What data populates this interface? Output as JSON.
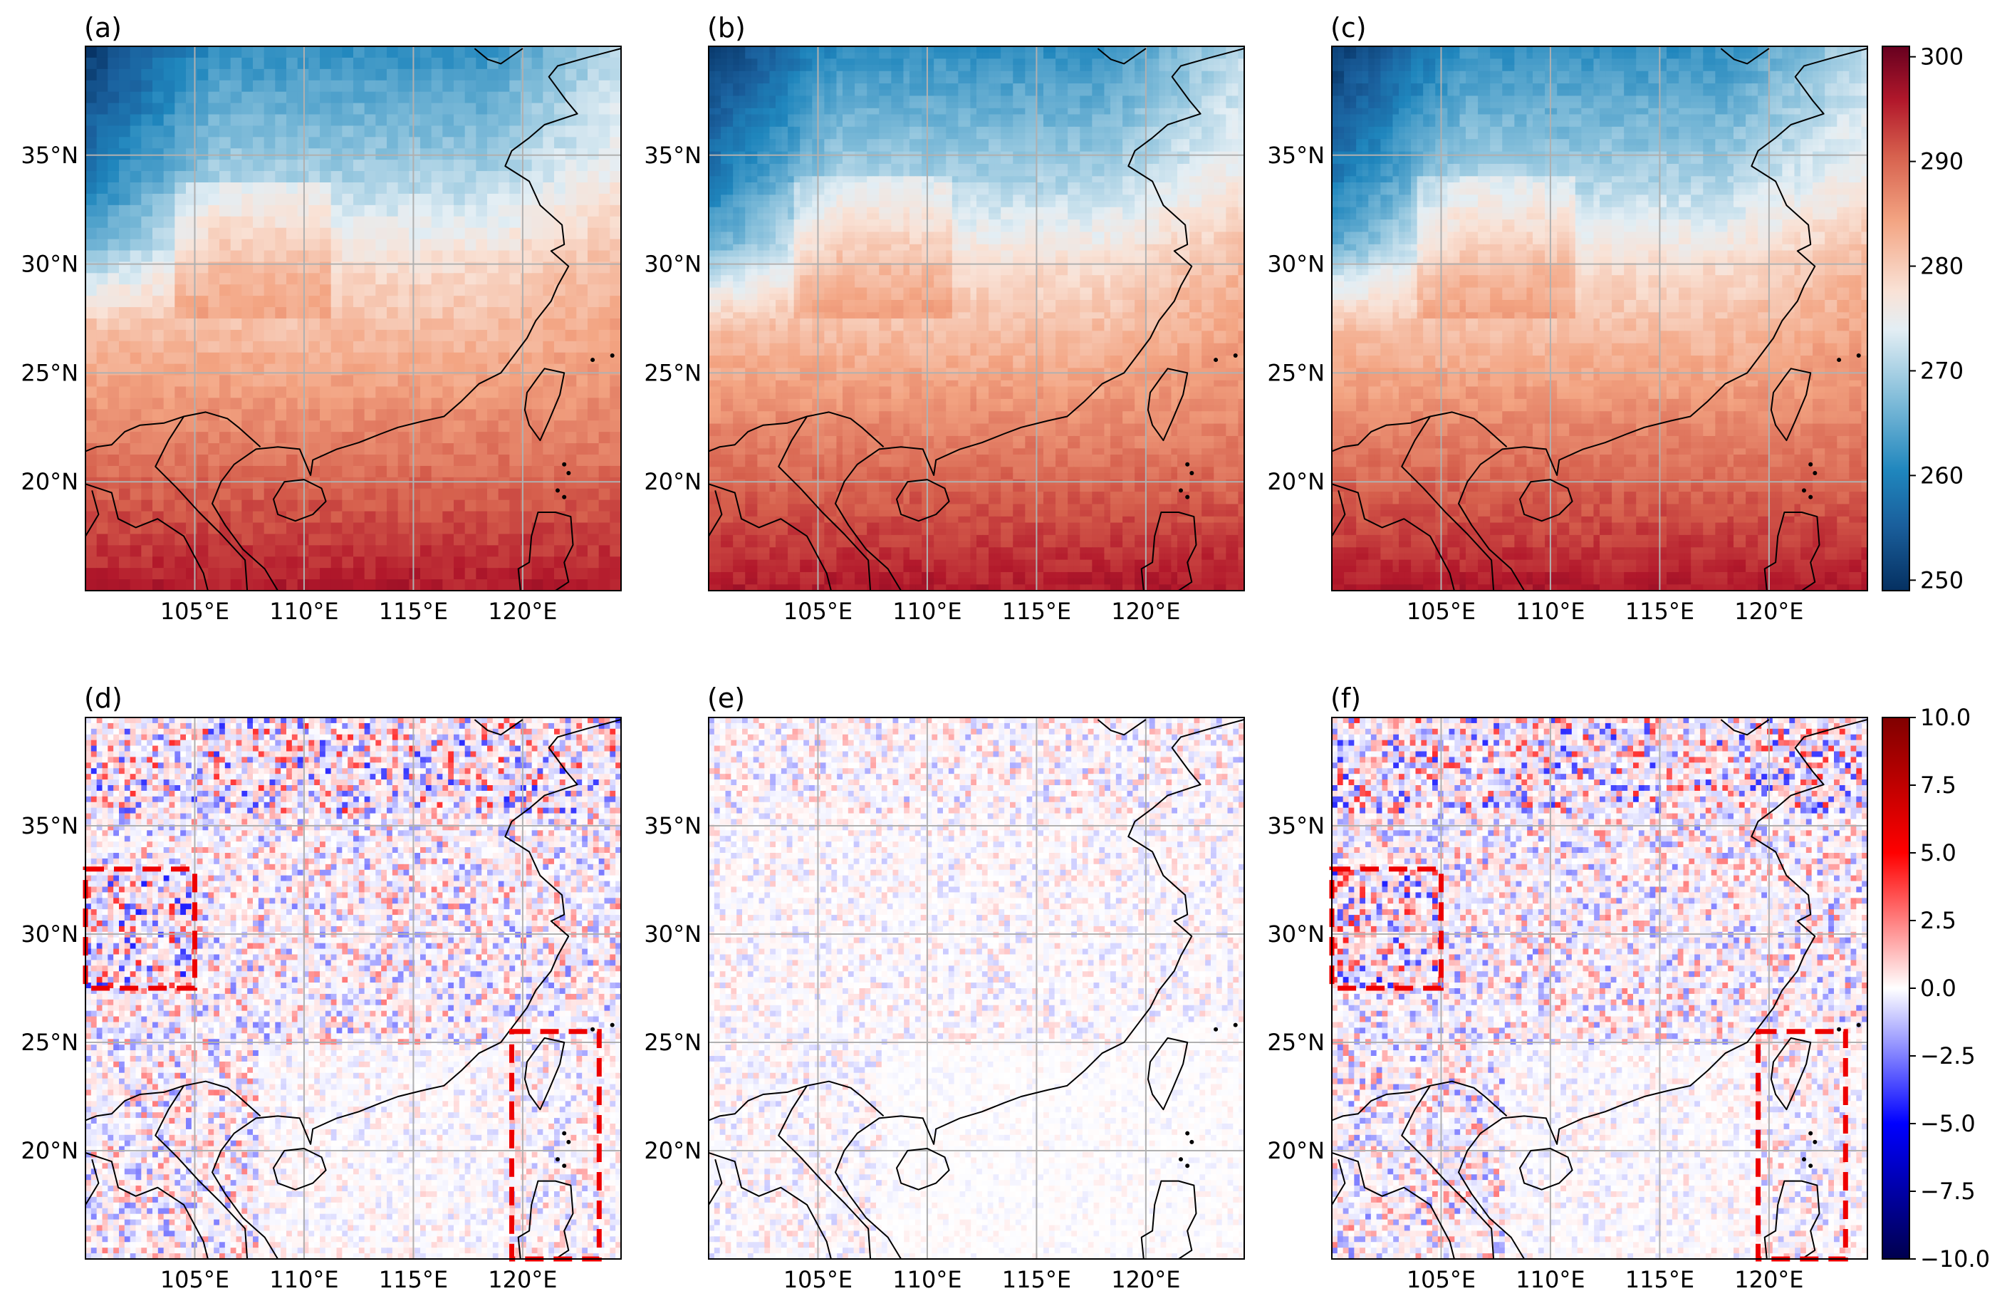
{
  "chart_data": [
    {
      "type": "heatmap",
      "panel": "(a)",
      "variable": "temperature",
      "colorscale": "RdBu_r",
      "vmin": 249,
      "vmax": 301,
      "xlim": [
        100,
        124.5
      ],
      "ylim": [
        15,
        40
      ],
      "xticks": [
        "105°E",
        "110°E",
        "115°E",
        "120°E"
      ],
      "yticks": [
        "35°N",
        "30°N",
        "25°N",
        "20°N"
      ],
      "pixelation": "coarse"
    },
    {
      "type": "heatmap",
      "panel": "(b)",
      "variable": "temperature",
      "colorscale": "RdBu_r",
      "vmin": 249,
      "vmax": 301,
      "xlim": [
        100,
        124.5
      ],
      "ylim": [
        15,
        40
      ],
      "xticks": [
        "105°E",
        "110°E",
        "115°E",
        "120°E"
      ],
      "yticks": [
        "35°N",
        "30°N",
        "25°N",
        "20°N"
      ],
      "pixelation": "fine"
    },
    {
      "type": "heatmap",
      "panel": "(c)",
      "variable": "temperature",
      "colorscale": "RdBu_r",
      "vmin": 249,
      "vmax": 301,
      "xlim": [
        100,
        124.5
      ],
      "ylim": [
        15,
        40
      ],
      "xticks": [
        "105°E",
        "110°E",
        "115°E",
        "120°E"
      ],
      "yticks": [
        "35°N",
        "30°N",
        "25°N",
        "20°N"
      ],
      "pixelation": "fine",
      "colorbar": {
        "ticks": [
          "300",
          "290",
          "280",
          "270",
          "260",
          "250"
        ],
        "values": [
          300,
          290,
          280,
          270,
          260,
          250
        ]
      }
    },
    {
      "type": "heatmap",
      "panel": "(d)",
      "variable": "difference",
      "colorscale": "seismic",
      "vmin": -10,
      "vmax": 10,
      "xlim": [
        100,
        124.5
      ],
      "ylim": [
        15,
        40
      ],
      "xticks": [
        "105°E",
        "110°E",
        "115°E",
        "120°E"
      ],
      "yticks": [
        "35°N",
        "30°N",
        "25°N",
        "20°N"
      ],
      "noise_amplitude": 2.6,
      "highlight_boxes": [
        {
          "lon": [
            100,
            105
          ],
          "lat": [
            27.5,
            33
          ]
        },
        {
          "lon": [
            119.5,
            123.5
          ],
          "lat": [
            15,
            25.5
          ]
        }
      ]
    },
    {
      "type": "heatmap",
      "panel": "(e)",
      "variable": "difference",
      "colorscale": "seismic",
      "vmin": -10,
      "vmax": 10,
      "xlim": [
        100,
        124.5
      ],
      "ylim": [
        15,
        40
      ],
      "xticks": [
        "105°E",
        "110°E",
        "115°E",
        "120°E"
      ],
      "yticks": [
        "35°N",
        "30°N",
        "25°N",
        "20°N"
      ],
      "noise_amplitude": 1.1,
      "highlight_boxes": []
    },
    {
      "type": "heatmap",
      "panel": "(f)",
      "variable": "difference",
      "colorscale": "seismic",
      "vmin": -10,
      "vmax": 10,
      "xlim": [
        100,
        124.5
      ],
      "ylim": [
        15,
        40
      ],
      "xticks": [
        "105°E",
        "110°E",
        "115°E",
        "120°E"
      ],
      "yticks": [
        "35°N",
        "30°N",
        "25°N",
        "20°N"
      ],
      "noise_amplitude": 2.6,
      "highlight_boxes": [
        {
          "lon": [
            100,
            105
          ],
          "lat": [
            27.5,
            33
          ]
        },
        {
          "lon": [
            119.5,
            123.5
          ],
          "lat": [
            15,
            25.5
          ]
        }
      ],
      "colorbar": {
        "ticks": [
          "10.0",
          "7.5",
          "5.0",
          "2.5",
          "0.0",
          "−2.5",
          "−5.0",
          "−7.5",
          "−10.0"
        ],
        "values": [
          10,
          7.5,
          5,
          2.5,
          0,
          -2.5,
          -5,
          -7.5,
          -10
        ]
      }
    }
  ]
}
